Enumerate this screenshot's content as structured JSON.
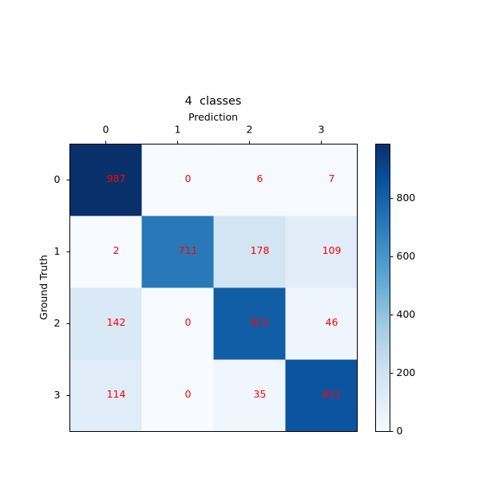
{
  "chart_data": {
    "type": "heatmap",
    "title": "4  classes",
    "xlabel": "Prediction",
    "ylabel": "Ground Truth",
    "x_categories": [
      "0",
      "1",
      "2",
      "3"
    ],
    "y_categories": [
      "0",
      "1",
      "2",
      "3"
    ],
    "values": [
      [
        987,
        0,
        6,
        7
      ],
      [
        2,
        711,
        178,
        109
      ],
      [
        142,
        0,
        812,
        46
      ],
      [
        114,
        0,
        35,
        851
      ]
    ],
    "colormap": "Blues",
    "value_range": [
      0,
      987
    ],
    "colorbar_ticks": [
      0,
      200,
      400,
      600,
      800
    ],
    "label_color": "#ff0000",
    "grid": false,
    "xaxis_position": "top"
  }
}
